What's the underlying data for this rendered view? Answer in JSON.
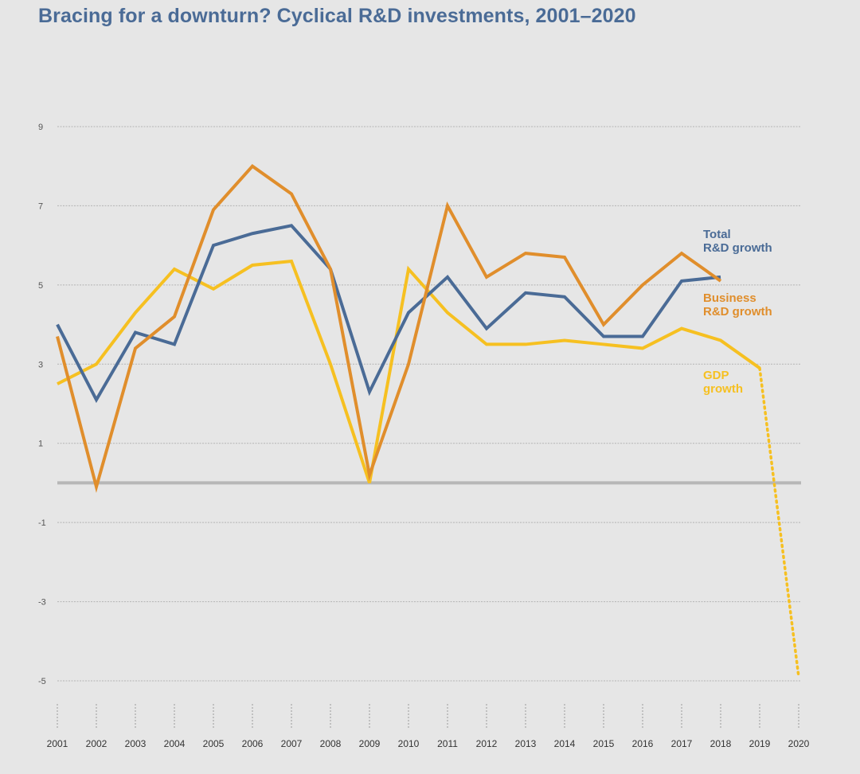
{
  "colors": {
    "background": "#e6e6e6",
    "total_rd": "#4a6b96",
    "business_rd": "#e08e2c",
    "gdp": "#f6c021",
    "grid": "#b4b4b4",
    "zero_line": "#b7b7b7"
  },
  "chart_data": {
    "type": "line",
    "title": "Bracing for a downturn? Cyclical R&D investments, 2001–2020",
    "xlabel": "",
    "ylabel": "",
    "ylim": [
      -5,
      9
    ],
    "yticks": [
      9,
      7,
      5,
      3,
      1,
      -1,
      -3,
      -5
    ],
    "x": [
      2001,
      2002,
      2003,
      2004,
      2005,
      2006,
      2007,
      2008,
      2009,
      2010,
      2011,
      2012,
      2013,
      2014,
      2015,
      2016,
      2017,
      2018,
      2019,
      2020
    ],
    "xtick_labels": [
      "2001",
      "2002",
      "2003",
      "2004",
      "2005",
      "2006",
      "2007",
      "2008",
      "2009",
      "2010",
      "2011",
      "2012",
      "2013",
      "2014",
      "2015",
      "2016",
      "2017",
      "2018",
      "2019",
      "2020"
    ],
    "grid": true,
    "series": [
      {
        "key": "total_rd",
        "name": "Total R&D growth",
        "label_lines": [
          "Total",
          "R&D growth"
        ],
        "values": [
          4.0,
          2.1,
          3.8,
          3.5,
          6.0,
          6.3,
          6.5,
          5.4,
          2.3,
          4.3,
          5.2,
          3.9,
          4.8,
          4.7,
          3.7,
          3.7,
          5.1,
          5.2,
          null,
          null
        ]
      },
      {
        "key": "business_rd",
        "name": "Business R&D growth",
        "label_lines": [
          "Business",
          "R&D growth"
        ],
        "values": [
          3.7,
          -0.1,
          3.4,
          4.2,
          6.9,
          8.0,
          7.3,
          5.4,
          0.2,
          3.0,
          7.0,
          5.2,
          5.8,
          5.7,
          4.0,
          5.0,
          5.8,
          5.1,
          null,
          null
        ]
      },
      {
        "key": "gdp",
        "name": "GDP growth",
        "label_lines": [
          "GDP",
          "growth"
        ],
        "values": [
          2.5,
          3.0,
          4.3,
          5.4,
          4.9,
          5.5,
          5.6,
          3.0,
          0.0,
          5.4,
          4.3,
          3.5,
          3.5,
          3.6,
          3.5,
          3.4,
          3.9,
          3.6,
          2.9,
          -4.9
        ],
        "projected_from_index": 18
      }
    ]
  }
}
